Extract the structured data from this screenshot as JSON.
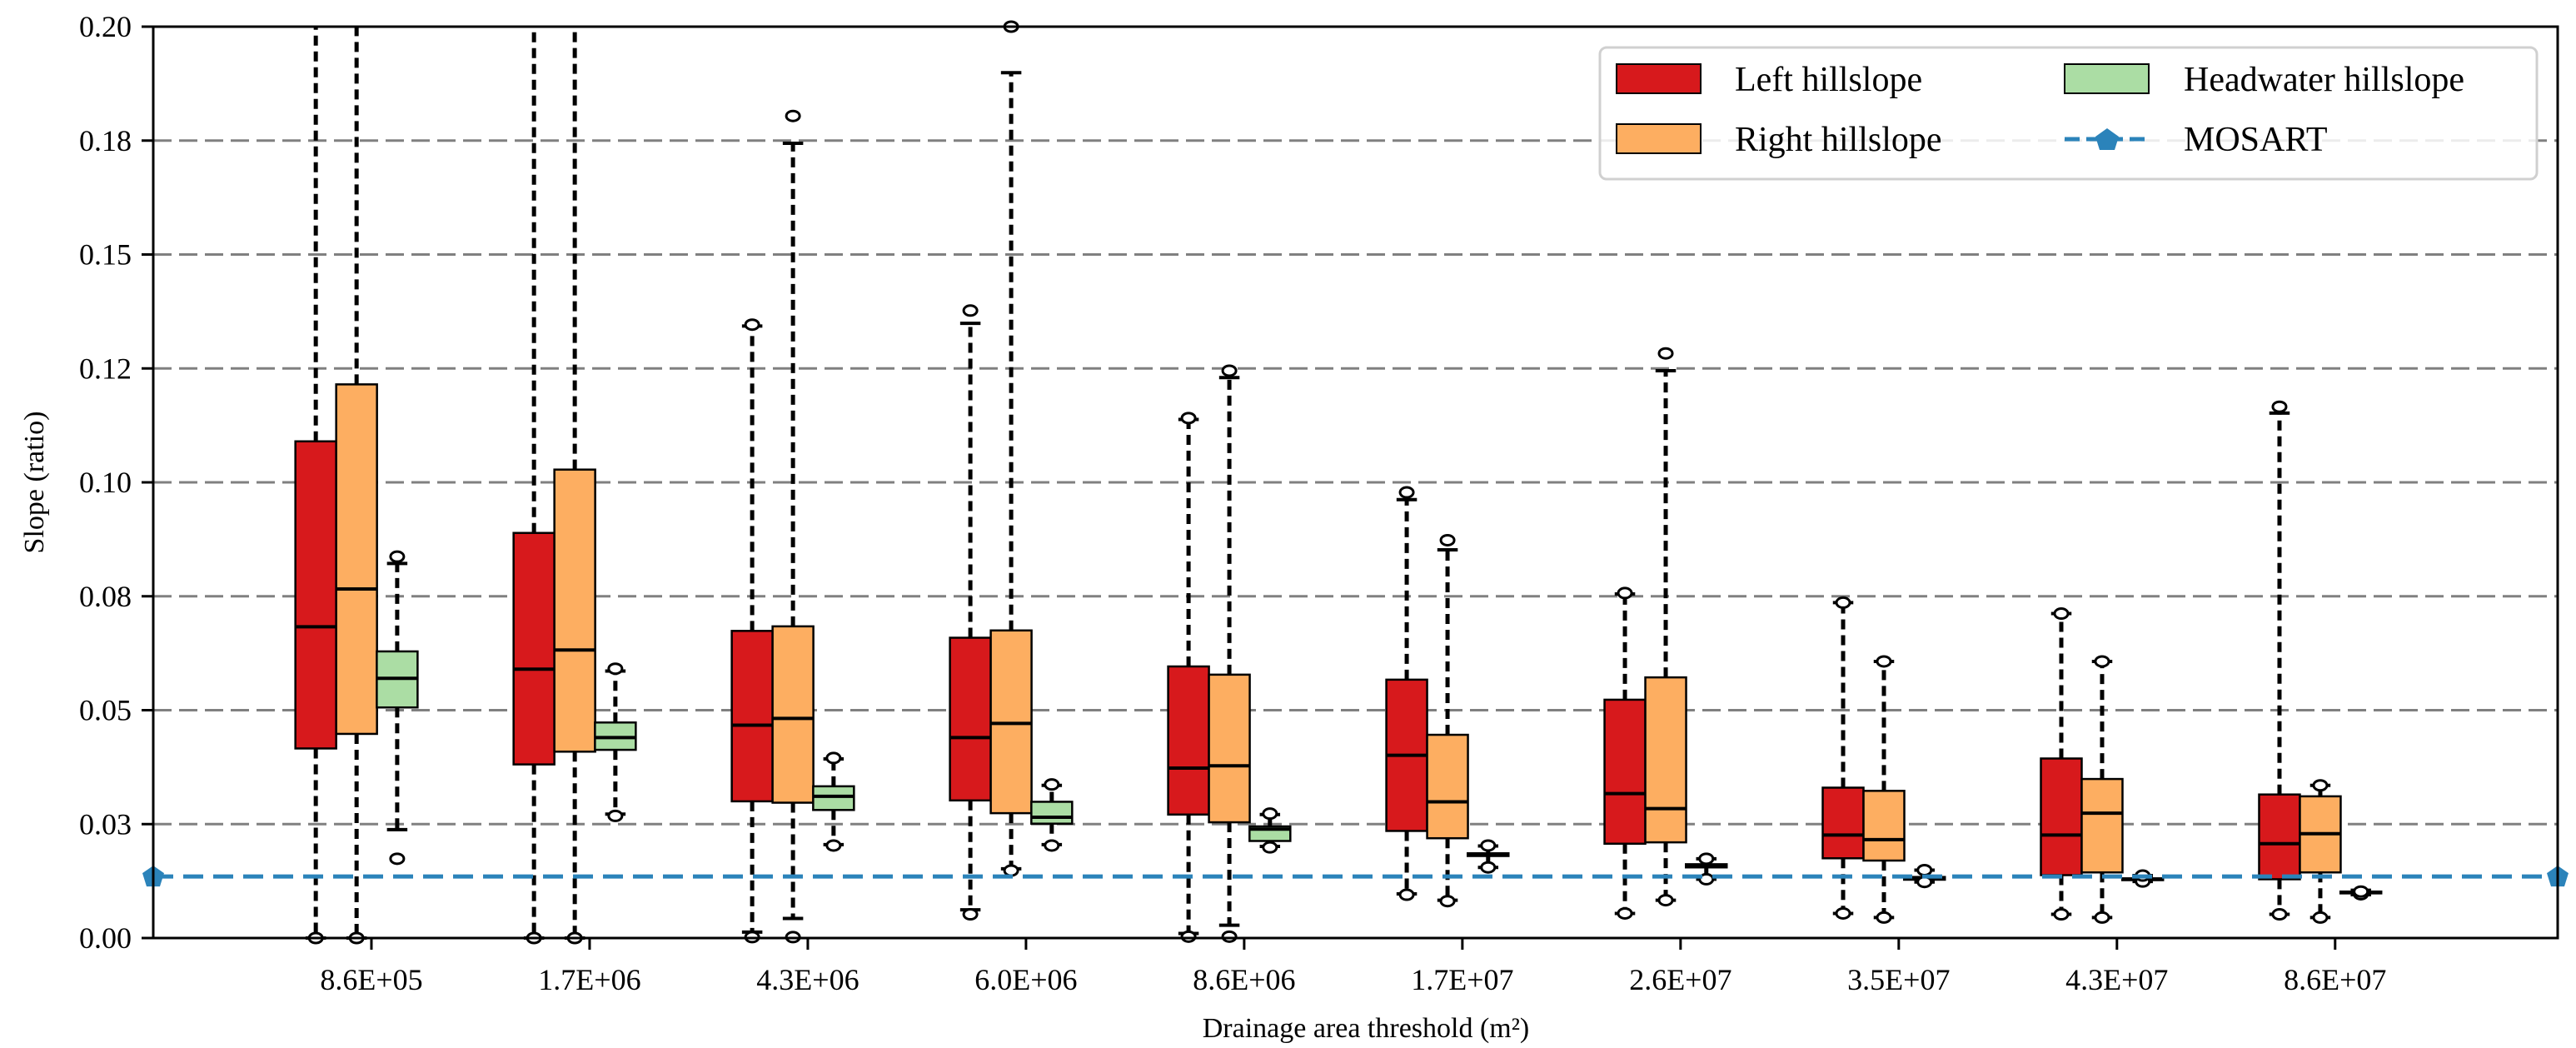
{
  "chart_data": {
    "type": "box",
    "title": "",
    "xlabel": "Drainage area threshold (m²)",
    "ylabel": "Slope (ratio)",
    "ylim": [
      0,
      0.2
    ],
    "xlim": [
      0,
      11.02
    ],
    "yticks": [
      0,
      0.025,
      0.05,
      0.075,
      0.1,
      0.125,
      0.15,
      0.175,
      0.2
    ],
    "ytick_labels": [
      "0.00",
      "0.03",
      "0.05",
      "0.08",
      "0.10",
      "0.12",
      "0.15",
      "0.18",
      "0.20"
    ],
    "grid": "horizontal dashed",
    "legend_position": "top-right",
    "categories": [
      "8.6E+05",
      "1.7E+06",
      "4.3E+06",
      "6.0E+06",
      "8.6E+06",
      "1.7E+07",
      "2.6E+07",
      "3.5E+07",
      "4.3E+07",
      "8.6E+07"
    ],
    "series": [
      {
        "name": "Left hillslope",
        "color": "#d7191c",
        "offset": -0.255,
        "boxes": [
          {
            "whislo": 0,
            "q1": 0.0416,
            "median": 0.0683,
            "q3": 0.109,
            "whishi": 0.25,
            "fliers": [
              0
            ]
          },
          {
            "whislo": 0,
            "q1": 0.0381,
            "median": 0.059,
            "q3": 0.0889,
            "whishi": 0.25,
            "fliers": [
              0
            ]
          },
          {
            "whislo": 0.0013,
            "q1": 0.03,
            "median": 0.0467,
            "q3": 0.0674,
            "whishi": 0.1343,
            "fliers": [
              0.0002,
              0.1346
            ]
          },
          {
            "whislo": 0.0062,
            "q1": 0.0302,
            "median": 0.044,
            "q3": 0.0659,
            "whishi": 0.1349,
            "fliers": [
              0.0052,
              0.1377
            ]
          },
          {
            "whislo": 0.001,
            "q1": 0.0271,
            "median": 0.0373,
            "q3": 0.0596,
            "whishi": 0.1138,
            "fliers": [
              0.0003,
              0.1141
            ]
          },
          {
            "whislo": 0.0097,
            "q1": 0.0235,
            "median": 0.0401,
            "q3": 0.0567,
            "whishi": 0.0962,
            "fliers": [
              0.0095,
              0.0978
            ]
          },
          {
            "whislo": 0.0054,
            "q1": 0.0207,
            "median": 0.0317,
            "q3": 0.0523,
            "whishi": 0.0755,
            "fliers": [
              0.0054,
              0.0757
            ]
          },
          {
            "whislo": 0.0054,
            "q1": 0.0175,
            "median": 0.0226,
            "q3": 0.033,
            "whishi": 0.0736,
            "fliers": [
              0.0054,
              0.0736
            ]
          },
          {
            "whislo": 0.0052,
            "q1": 0.0138,
            "median": 0.0226,
            "q3": 0.0394,
            "whishi": 0.0712,
            "fliers": [
              0.0052,
              0.0712
            ]
          },
          {
            "whislo": 0.0052,
            "q1": 0.0129,
            "median": 0.0207,
            "q3": 0.0315,
            "whishi": 0.1152,
            "fliers": [
              0.0052,
              0.1166
            ]
          }
        ]
      },
      {
        "name": "Right hillslope",
        "color": "#fdae61",
        "offset": -0.068,
        "boxes": [
          {
            "whislo": 0,
            "q1": 0.0448,
            "median": 0.0766,
            "q3": 0.1215,
            "whishi": 0.25,
            "fliers": [
              0
            ]
          },
          {
            "whislo": 0,
            "q1": 0.0409,
            "median": 0.0632,
            "q3": 0.1028,
            "whishi": 0.25,
            "fliers": [
              0
            ]
          },
          {
            "whislo": 0.0043,
            "q1": 0.0297,
            "median": 0.0482,
            "q3": 0.0684,
            "whishi": 0.1744,
            "fliers": [
              0.0002,
              0.1804
            ]
          },
          {
            "whislo": 0.0152,
            "q1": 0.0274,
            "median": 0.0471,
            "q3": 0.0675,
            "whishi": 0.1899,
            "fliers": [
              0.0148,
              0.2
            ]
          },
          {
            "whislo": 0.0028,
            "q1": 0.0254,
            "median": 0.0378,
            "q3": 0.0578,
            "whishi": 0.123,
            "fliers": [
              0.0003,
              0.1245
            ]
          },
          {
            "whislo": 0.0083,
            "q1": 0.0219,
            "median": 0.0299,
            "q3": 0.0446,
            "whishi": 0.0852,
            "fliers": [
              0.0081,
              0.0873
            ]
          },
          {
            "whislo": 0.0083,
            "q1": 0.021,
            "median": 0.0284,
            "q3": 0.0572,
            "whishi": 0.1245,
            "fliers": [
              0.0083,
              0.1283
            ]
          },
          {
            "whislo": 0.0045,
            "q1": 0.017,
            "median": 0.0216,
            "q3": 0.0323,
            "whishi": 0.0607,
            "fliers": [
              0.0045,
              0.0607
            ]
          },
          {
            "whislo": 0.0045,
            "q1": 0.0144,
            "median": 0.0274,
            "q3": 0.0349,
            "whishi": 0.0607,
            "fliers": [
              0.0045,
              0.0607
            ]
          },
          {
            "whislo": 0.0045,
            "q1": 0.0144,
            "median": 0.0229,
            "q3": 0.0311,
            "whishi": 0.0335,
            "fliers": [
              0.0045,
              0.0335
            ]
          }
        ]
      },
      {
        "name": "Headwater hillslope",
        "color": "#abdda4",
        "offset": 0.118,
        "boxes": [
          {
            "whislo": 0.0238,
            "q1": 0.0506,
            "median": 0.057,
            "q3": 0.0629,
            "whishi": 0.0822,
            "fliers": [
              0.0174,
              0.0837
            ]
          },
          {
            "whislo": 0.0272,
            "q1": 0.0413,
            "median": 0.044,
            "q3": 0.0473,
            "whishi": 0.0586,
            "fliers": [
              0.0268,
              0.0591
            ]
          },
          {
            "whislo": 0.0205,
            "q1": 0.0281,
            "median": 0.0311,
            "q3": 0.0333,
            "whishi": 0.0393,
            "fliers": [
              0.0203,
              0.0395
            ]
          },
          {
            "whislo": 0.0205,
            "q1": 0.0251,
            "median": 0.0265,
            "q3": 0.0299,
            "whishi": 0.0335,
            "fliers": [
              0.0203,
              0.0337
            ]
          },
          {
            "whislo": 0.0201,
            "q1": 0.0213,
            "median": 0.0239,
            "q3": 0.0245,
            "whishi": 0.0271,
            "fliers": [
              0.0199,
              0.0273
            ]
          },
          {
            "whislo": 0.0155,
            "q1": 0.018,
            "median": 0.0183,
            "q3": 0.0186,
            "whishi": 0.0202,
            "fliers": [
              0.0155,
              0.0203
            ]
          },
          {
            "whislo": 0.0129,
            "q1": 0.0155,
            "median": 0.0159,
            "q3": 0.0162,
            "whishi": 0.0174,
            "fliers": [
              0.0129,
              0.0174
            ]
          },
          {
            "whislo": 0.0123,
            "q1": 0.0128,
            "median": 0.0131,
            "q3": 0.0134,
            "whishi": 0.0149,
            "fliers": [
              0.0123,
              0.0149
            ]
          },
          {
            "whislo": 0.0124,
            "q1": 0.0127,
            "median": 0.0129,
            "q3": 0.0131,
            "whishi": 0.0137,
            "fliers": [
              0.0124,
              0.0137
            ]
          },
          {
            "whislo": 0.0095,
            "q1": 0.0098,
            "median": 0.01,
            "q3": 0.0102,
            "whishi": 0.0105,
            "fliers": [
              0.0096,
              0.0102
            ]
          }
        ]
      }
    ],
    "reference_line": {
      "name": "MOSART",
      "value": 0.0135,
      "color": "#2b83ba"
    }
  }
}
